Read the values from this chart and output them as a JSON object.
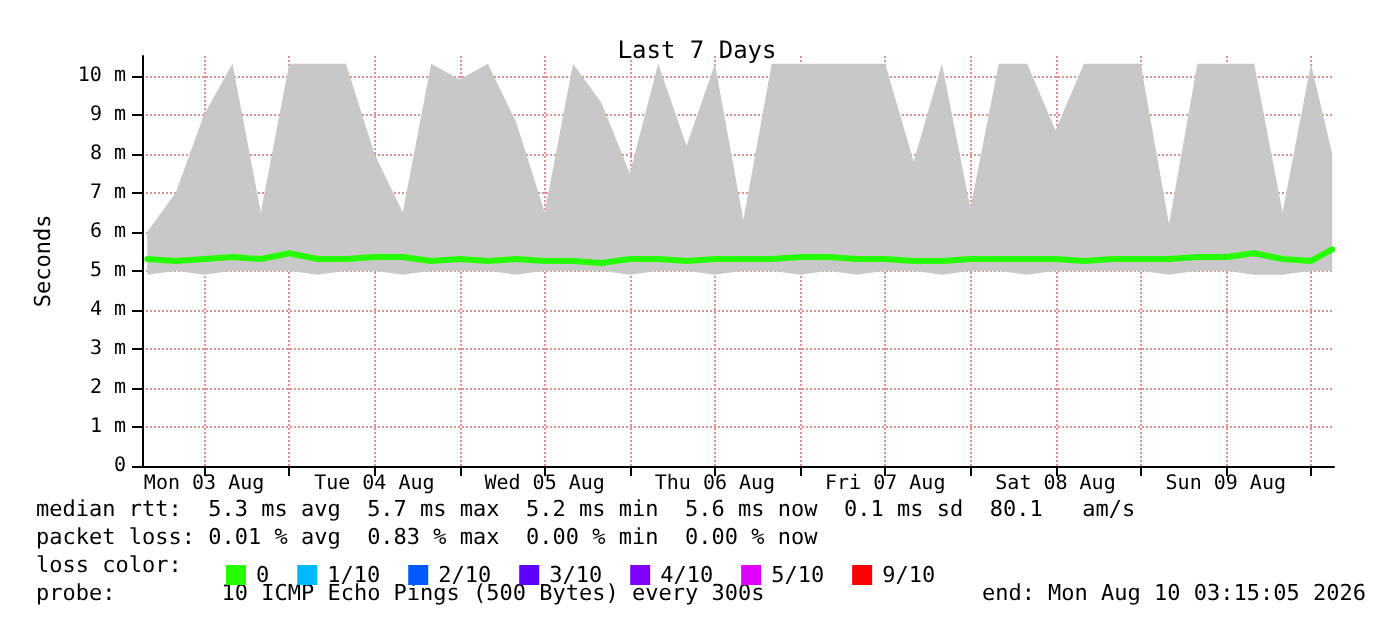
{
  "chart_data": {
    "type": "line",
    "title": "Last 7 Days",
    "ylabel": "Seconds",
    "legend_title": "loss color:",
    "legend": "bottom left",
    "grid": true,
    "marker": "none",
    "line_style": "solid",
    "xlim": [
      "2026-08-03T03:15",
      "2026-08-10T03:15"
    ],
    "xticks": [
      {
        "value": "2026-08-03T12:00",
        "label": "Mon 03 Aug"
      },
      {
        "value": "2026-08-04T00:00",
        "label": null
      },
      {
        "value": "2026-08-04T12:00",
        "label": "Tue 04 Aug"
      },
      {
        "value": "2026-08-05T00:00",
        "label": null
      },
      {
        "value": "2026-08-05T12:00",
        "label": "Wed 05 Aug"
      },
      {
        "value": "2026-08-06T00:00",
        "label": null
      },
      {
        "value": "2026-08-06T12:00",
        "label": "Thu 06 Aug"
      },
      {
        "value": "2026-08-07T00:00",
        "label": null
      },
      {
        "value": "2026-08-07T12:00",
        "label": "Fri 07 Aug"
      },
      {
        "value": "2026-08-08T00:00",
        "label": null
      },
      {
        "value": "2026-08-08T12:00",
        "label": "Sat 08 Aug"
      },
      {
        "value": "2026-08-09T00:00",
        "label": null
      },
      {
        "value": "2026-08-09T12:00",
        "label": "Sun 09 Aug"
      },
      {
        "value": "2026-08-10T00:00",
        "label": null
      }
    ],
    "ylim": [
      0,
      10.5
    ],
    "yticks": [
      0,
      {
        "value": 1,
        "label": "1 m"
      },
      {
        "value": 2,
        "label": "2 m"
      },
      {
        "value": 3,
        "label": "3 m"
      },
      {
        "value": 4,
        "label": "4 m"
      },
      {
        "value": 5,
        "label": "5 m"
      },
      {
        "value": 6,
        "label": "6 m"
      },
      {
        "value": 7,
        "label": "7 m"
      },
      {
        "value": 8,
        "label": "8 m"
      },
      {
        "value": 9,
        "label": "9 m"
      },
      {
        "value": 10,
        "label": "10 m"
      }
    ],
    "x": [
      "2026-08-03T04:00",
      "2026-08-03T08:00",
      "2026-08-03T12:00",
      "2026-08-03T16:00",
      "2026-08-03T20:00",
      "2026-08-04T00:00",
      "2026-08-04T04:00",
      "2026-08-04T08:00",
      "2026-08-04T12:00",
      "2026-08-04T16:00",
      "2026-08-04T20:00",
      "2026-08-05T00:00",
      "2026-08-05T04:00",
      "2026-08-05T08:00",
      "2026-08-05T12:00",
      "2026-08-05T16:00",
      "2026-08-05T20:00",
      "2026-08-06T00:00",
      "2026-08-06T04:00",
      "2026-08-06T08:00",
      "2026-08-06T12:00",
      "2026-08-06T16:00",
      "2026-08-06T20:00",
      "2026-08-07T00:00",
      "2026-08-07T04:00",
      "2026-08-07T08:00",
      "2026-08-07T12:00",
      "2026-08-07T16:00",
      "2026-08-07T20:00",
      "2026-08-08T00:00",
      "2026-08-08T04:00",
      "2026-08-08T08:00",
      "2026-08-08T12:00",
      "2026-08-08T16:00",
      "2026-08-08T20:00",
      "2026-08-09T00:00",
      "2026-08-09T04:00",
      "2026-08-09T08:00",
      "2026-08-09T12:00",
      "2026-08-09T16:00",
      "2026-08-09T20:00",
      "2026-08-10T00:00",
      "2026-08-10T03:00"
    ],
    "series": [
      {
        "name": "0",
        "color": "#26ff00",
        "values": [
          5.3,
          5.25,
          5.3,
          5.35,
          5.3,
          5.45,
          5.3,
          5.3,
          5.35,
          5.35,
          5.25,
          5.3,
          5.25,
          5.3,
          5.25,
          5.25,
          5.2,
          5.3,
          5.3,
          5.25,
          5.3,
          5.3,
          5.3,
          5.35,
          5.35,
          5.3,
          5.3,
          5.25,
          5.25,
          5.3,
          5.3,
          5.3,
          5.3,
          5.25,
          5.3,
          5.3,
          5.3,
          5.35,
          5.35,
          5.45,
          5.3,
          5.25,
          5.55
        ],
        "lower": [
          4.9,
          5.0,
          4.9,
          5.0,
          5.0,
          5.0,
          4.9,
          5.0,
          5.0,
          4.9,
          5.0,
          5.0,
          5.0,
          4.9,
          5.0,
          5.0,
          5.0,
          4.9,
          5.0,
          5.0,
          4.9,
          5.0,
          5.0,
          4.9,
          5.0,
          4.9,
          5.0,
          5.0,
          4.9,
          5.0,
          5.0,
          4.9,
          5.0,
          5.0,
          5.0,
          5.0,
          4.9,
          5.0,
          5.0,
          4.9,
          4.9,
          5.0,
          5.0
        ],
        "upper": [
          6.0,
          7.0,
          9.0,
          10.3,
          6.5,
          10.3,
          10.3,
          10.3,
          8.0,
          6.5,
          10.3,
          9.9,
          10.3,
          8.8,
          6.5,
          10.3,
          9.3,
          7.5,
          10.3,
          8.2,
          10.3,
          6.3,
          10.3,
          10.3,
          10.3,
          10.3,
          10.3,
          7.8,
          10.3,
          6.6,
          10.3,
          10.3,
          8.6,
          10.3,
          10.3,
          10.3,
          6.2,
          10.3,
          10.3,
          10.3,
          6.5,
          10.3,
          8.0
        ]
      },
      {
        "name": "1/10",
        "color": "#00b8ff",
        "values": [
          null,
          null,
          null,
          null,
          null,
          null,
          null,
          null,
          null,
          null,
          null,
          null,
          null,
          null,
          null,
          null,
          null,
          null,
          null,
          null,
          null,
          null,
          null,
          null,
          null,
          null,
          null,
          null,
          null,
          null,
          null,
          null,
          null,
          null,
          null,
          null,
          null,
          null,
          null,
          null,
          null,
          null,
          null
        ]
      },
      {
        "name": "2/10",
        "color": "#0059ff",
        "values": [
          null,
          null,
          null,
          null,
          null,
          null,
          null,
          null,
          null,
          null,
          null,
          null,
          null,
          null,
          null,
          null,
          null,
          null,
          null,
          null,
          null,
          null,
          null,
          null,
          null,
          null,
          null,
          null,
          null,
          null,
          null,
          null,
          null,
          null,
          null,
          null,
          null,
          null,
          null,
          null,
          null,
          null,
          null
        ]
      },
      {
        "name": "3/10",
        "color": "#5e00ff",
        "values": [
          null,
          null,
          null,
          null,
          null,
          null,
          null,
          null,
          null,
          null,
          null,
          null,
          null,
          null,
          null,
          null,
          null,
          null,
          null,
          null,
          null,
          null,
          null,
          null,
          null,
          null,
          null,
          null,
          null,
          null,
          null,
          null,
          null,
          null,
          null,
          null,
          null,
          null,
          null,
          null,
          null,
          null,
          null
        ]
      },
      {
        "name": "4/10",
        "color": "#7e00ff",
        "values": [
          null,
          null,
          null,
          null,
          null,
          null,
          null,
          null,
          null,
          null,
          null,
          null,
          null,
          null,
          null,
          null,
          null,
          null,
          null,
          null,
          null,
          null,
          null,
          null,
          null,
          null,
          null,
          null,
          null,
          null,
          null,
          null,
          null,
          null,
          null,
          null,
          null,
          null,
          null,
          null,
          null,
          null,
          null
        ]
      },
      {
        "name": "5/10",
        "color": "#dd00ff",
        "values": [
          null,
          null,
          null,
          null,
          null,
          null,
          null,
          null,
          null,
          null,
          null,
          null,
          null,
          null,
          null,
          null,
          null,
          null,
          null,
          null,
          null,
          null,
          null,
          null,
          null,
          null,
          null,
          null,
          null,
          null,
          null,
          null,
          null,
          null,
          null,
          null,
          null,
          null,
          null,
          null,
          null,
          null,
          null
        ]
      },
      {
        "name": "9/10",
        "color": "#ff0000",
        "values": [
          null,
          null,
          null,
          null,
          null,
          null,
          null,
          null,
          null,
          null,
          null,
          null,
          null,
          null,
          null,
          null,
          null,
          null,
          null,
          null,
          null,
          null,
          null,
          null,
          null,
          null,
          null,
          null,
          null,
          null,
          null,
          null,
          null,
          null,
          null,
          null,
          null,
          null,
          null,
          null,
          null,
          null,
          null
        ]
      }
    ],
    "annotations": [
      "median rtt:  5.3 ms avg  5.7 ms max  5.2 ms min  5.6 ms now  0.1 ms sd  80.1   am/s",
      "packet loss: 0.01 % avg  0.83 % max  0.00 % min  0.00 % now",
      "probe:        10 ICMP Echo Pings (500 Bytes) every 300s",
      "end: Mon Aug 10 03:15:05 2026"
    ]
  }
}
